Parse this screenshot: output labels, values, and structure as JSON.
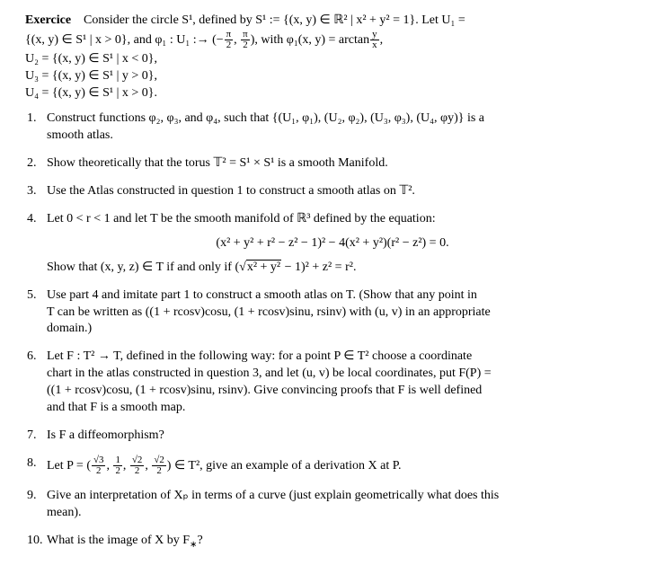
{
  "header": {
    "label": "Exercice",
    "line1": "Consider the circle S¹, defined by S¹ := {(x, y) ∈ ℝ² | x² + y² = 1}.  Let U₁ =",
    "line2_a": "{(x, y) ∈ S¹ | x > 0}, and φ₁ : U₁ :→ (−",
    "line2_b": ",",
    "line2_c": "), with φ₁(x, y) = arctan",
    "line2_d": ",",
    "line3": "U₂ = {(x, y) ∈ S¹ | x < 0},",
    "line4": "U₃ = {(x, y) ∈ S¹ | y > 0},",
    "line5": "U₄ = {(x, y) ∈ S¹ | x > 0}.",
    "frac_pi2_num": "π",
    "frac_pi2_den": "2",
    "frac_yx_num": "y",
    "frac_yx_den": "x"
  },
  "items": {
    "i1a": "Construct functions φ₂, φ₃, and φ₄, such that {(U₁, φ₁), (U₂, φ₂), (U₃, φ₃), (U₄, φy)} is a",
    "i1b": "smooth atlas.",
    "i2": "Show theoretically that the torus 𝕋² = S¹ × S¹ is a smooth Manifold.",
    "i3": "Use the Atlas constructed in question 1 to construct a smooth atlas on 𝕋².",
    "i4a": "Let 0 < r < 1 and let T be the smooth manifold of ℝ³ defined by the equation:",
    "i4eq": "(x² + y² + r² − z² − 1)² − 4(x² + y²)(r² − z²) = 0.",
    "i4b": "Show that (x, y, z) ∈ T if and only if (",
    "i4b_in": "x² + y²",
    "i4b_tail": " − 1)² + z² = r².",
    "i5a": "Use part 4 and imitate part 1 to construct a smooth atlas on T. (Show that any point in",
    "i5b": "T can be written as ((1 + rcosv)cosu, (1 + rcosv)sinu, rsinv) with (u, v) in an appropriate",
    "i5c": "domain.)",
    "i6a": "Let F : T² → T, defined in the following way: for a point P ∈ T² choose a coordinate",
    "i6b": "chart in the atlas constructed in question 3, and let (u, v) be local coordinates, put F(P) =",
    "i6c": "((1 + rcosv)cosu, (1 + rcosv)sinu, rsinv).  Give convincing proofs that F is well defined",
    "i6d": "and that F is a smooth map.",
    "i7": "Is F a diffeomorphism?",
    "i8a": "Let P = (",
    "i8b": ",",
    "i8c": ",",
    "i8d": ",",
    "i8e": ") ∈ T², give an example of a derivation X at P.",
    "i9a": "Give an interpretation of Xₚ in terms of a curve (just explain geometrically what does this",
    "i9b": "mean).",
    "i10": "What is the image of X by F",
    "i10_tail": "?",
    "frac_sqrt3_num": "√3",
    "frac_sqrt3_den": "2",
    "frac_12_num": "1",
    "frac_12_den": "2",
    "frac_sqrt2_num": "√2",
    "frac_sqrt2_den": "2",
    "star": "∗"
  }
}
